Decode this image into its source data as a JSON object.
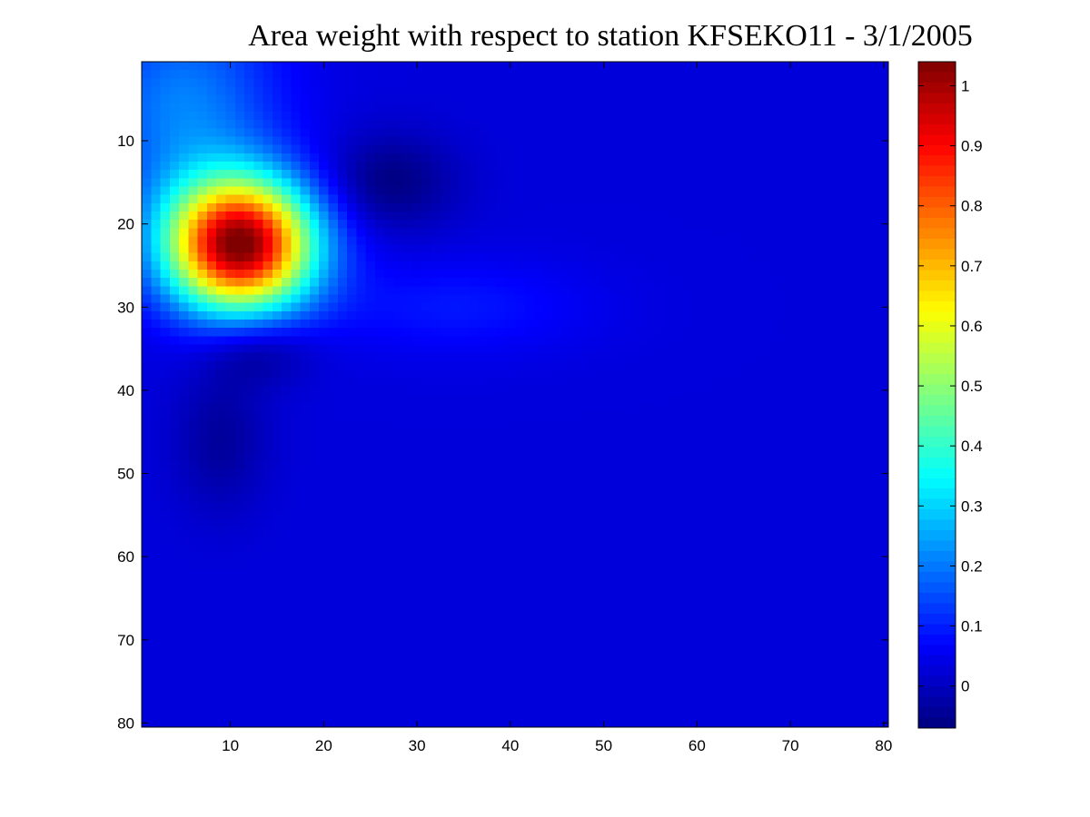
{
  "chart_data": {
    "type": "heatmap",
    "title": "Area weight with respect to station KFSEKO11 - 3/1/2005",
    "xlabel": "",
    "ylabel": "",
    "x_range": [
      0.5,
      80.5
    ],
    "y_range": [
      0.5,
      80.5
    ],
    "y_direction": "top-to-bottom",
    "x_ticks": [
      10,
      20,
      30,
      40,
      50,
      60,
      70,
      80
    ],
    "y_ticks": [
      10,
      20,
      30,
      40,
      50,
      60,
      70,
      80
    ],
    "grid_size": [
      80,
      80
    ],
    "colorbar": {
      "colormap": "jet",
      "range": [
        -0.07,
        1.04
      ],
      "ticks": [
        0,
        0.1,
        0.2,
        0.3,
        0.4,
        0.5,
        0.6,
        0.7,
        0.8,
        0.9,
        1
      ],
      "tick_labels": [
        "0",
        "0.1",
        "0.2",
        "0.3",
        "0.4",
        "0.5",
        "0.6",
        "0.7",
        "0.8",
        "0.9",
        "1"
      ],
      "placement": "right"
    },
    "background_value": 0.03,
    "features": [
      {
        "kind": "peak",
        "center_x": 11,
        "center_y": 22.5,
        "amplitude": 1.04,
        "spread_x": 5.5,
        "spread_y": 5.5
      },
      {
        "kind": "trough",
        "center_x": 27,
        "center_y": 15,
        "amplitude": -0.07,
        "spread_x": 5,
        "spread_y": 4
      },
      {
        "kind": "trough",
        "center_x": 13,
        "center_y": 35,
        "amplitude": -0.06,
        "spread_x": 4,
        "spread_y": 3
      },
      {
        "kind": "trough",
        "center_x": 9,
        "center_y": 46,
        "amplitude": -0.04,
        "spread_x": 3.5,
        "spread_y": 6
      },
      {
        "kind": "ridge",
        "center_x": 5,
        "center_y": 6,
        "amplitude": 0.18,
        "spread_x": 7,
        "spread_y": 9
      },
      {
        "kind": "ridge",
        "center_x": 34,
        "center_y": 30,
        "amplitude": 0.06,
        "spread_x": 10,
        "spread_y": 4
      }
    ]
  }
}
